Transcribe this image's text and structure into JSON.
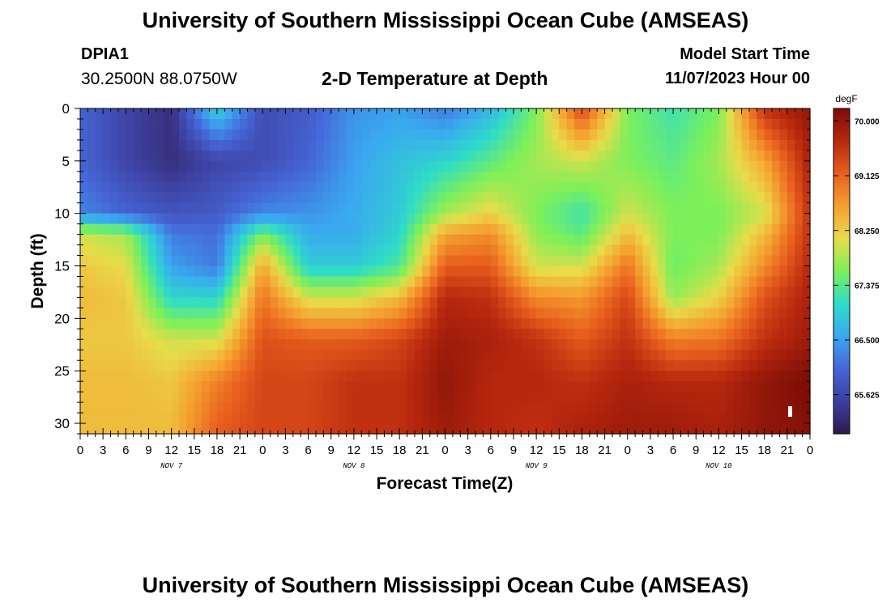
{
  "header": {
    "title": "University of Southern Mississippi Ocean Cube (AMSEAS)",
    "station_id": "DPIA1",
    "coordinates": "30.2500N  88.0750W",
    "plot_title": "2-D Temperature at Depth",
    "start_label": "Model Start Time",
    "start_value": "11/07/2023 Hour 00"
  },
  "footer": {
    "title": "University of Southern Mississippi Ocean Cube (AMSEAS)"
  },
  "colors": {
    "colormap": [
      "#2d1a4e",
      "#3d3f9e",
      "#4666d8",
      "#3aa8f0",
      "#2fdcc8",
      "#7cf05a",
      "#e8dc4a",
      "#f5a030",
      "#e8601e",
      "#b8280e",
      "#7a0c06"
    ]
  },
  "chart_data": {
    "type": "heatmap",
    "title": "2-D Temperature at Depth",
    "xlabel": "Forecast Time(Z)",
    "ylabel": "Depth (ft)",
    "x_tick_labels": [
      "0",
      "3",
      "6",
      "9",
      "12",
      "15",
      "18",
      "21",
      "0",
      "3",
      "6",
      "9",
      "12",
      "15",
      "18",
      "21",
      "0",
      "3",
      "6",
      "9",
      "12",
      "15",
      "18",
      "21",
      "0",
      "3",
      "6",
      "9",
      "12",
      "15",
      "18",
      "21",
      "0"
    ],
    "date_labels": [
      "NOV 7",
      "NOV 8",
      "NOV 9",
      "NOV 10"
    ],
    "y_ticks": [
      0,
      5,
      10,
      15,
      20,
      25,
      30
    ],
    "ylim": [
      0,
      31
    ],
    "xlim_hours": [
      0,
      96
    ],
    "colorbar": {
      "unit": "degF",
      "ticks": [
        "70.000",
        "69.125",
        "68.250",
        "67.375",
        "66.500",
        "65.625"
      ],
      "range": [
        65.0,
        70.2
      ]
    },
    "heat_x_hours": [
      0,
      6,
      12,
      18,
      24,
      30,
      36,
      42,
      48,
      54,
      60,
      66,
      72,
      78,
      84,
      90,
      96
    ],
    "heat_depths_ft": [
      0,
      5,
      10,
      12,
      15,
      18,
      22,
      26,
      31
    ],
    "temperature_degF": [
      [
        66.0,
        65.6,
        65.3,
        67.0,
        65.7,
        65.9,
        66.4,
        66.5,
        66.2,
        66.7,
        67.6,
        69.4,
        67.6,
        67.2,
        67.6,
        69.6,
        70.0
      ],
      [
        66.0,
        65.6,
        65.3,
        65.6,
        65.7,
        66.0,
        66.5,
        66.8,
        67.0,
        67.4,
        67.8,
        68.0,
        67.6,
        67.4,
        67.8,
        68.6,
        69.8
      ],
      [
        66.3,
        66.0,
        65.8,
        65.9,
        66.3,
        66.4,
        66.6,
        66.9,
        67.8,
        68.2,
        67.6,
        67.2,
        68.0,
        67.6,
        67.6,
        68.0,
        69.6
      ],
      [
        68.0,
        67.8,
        66.2,
        66.1,
        67.6,
        66.6,
        66.6,
        67.0,
        68.6,
        68.8,
        67.7,
        67.4,
        68.4,
        67.6,
        67.6,
        68.4,
        69.6
      ],
      [
        68.3,
        68.1,
        66.5,
        66.2,
        68.6,
        66.9,
        66.9,
        67.3,
        69.2,
        69.2,
        68.0,
        68.0,
        69.0,
        67.5,
        67.8,
        68.8,
        69.7
      ],
      [
        68.4,
        68.3,
        67.0,
        67.0,
        69.0,
        68.0,
        68.0,
        68.4,
        69.7,
        69.6,
        68.8,
        68.7,
        69.4,
        67.7,
        68.2,
        69.3,
        69.8
      ],
      [
        68.3,
        68.3,
        68.0,
        68.0,
        69.3,
        69.2,
        69.2,
        69.4,
        69.9,
        69.8,
        69.6,
        69.2,
        69.6,
        68.9,
        69.0,
        69.6,
        69.9
      ],
      [
        68.4,
        68.4,
        68.3,
        68.9,
        69.4,
        69.4,
        69.6,
        69.6,
        70.0,
        69.7,
        69.7,
        69.6,
        69.8,
        69.7,
        69.7,
        70.0,
        70.2
      ],
      [
        68.4,
        68.4,
        68.4,
        69.2,
        69.4,
        69.4,
        69.6,
        69.6,
        69.9,
        69.7,
        69.6,
        69.8,
        69.9,
        69.9,
        69.8,
        70.0,
        70.1
      ]
    ]
  }
}
